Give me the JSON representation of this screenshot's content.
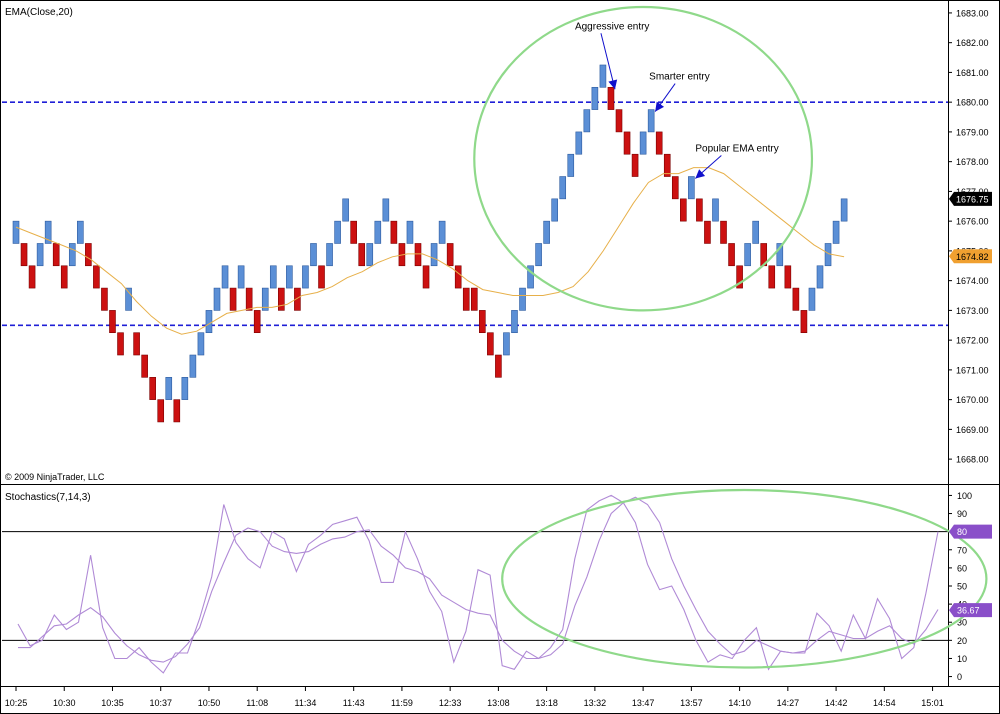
{
  "chart_data": [
    {
      "type": "renko",
      "title": "EMA(Close,20)",
      "copyright": "© 2009 NinjaTrader, LLC",
      "ylim": [
        1667.5,
        1683.3
      ],
      "y_ticks": [
        1668.0,
        1669.0,
        1670.0,
        1671.0,
        1672.0,
        1673.0,
        1674.0,
        1675.0,
        1676.0,
        1677.0,
        1678.0,
        1679.0,
        1680.0,
        1681.0,
        1682.0,
        1683.0
      ],
      "brick_size": 0.75,
      "colors": {
        "up": "#5b8fd6",
        "down": "#cc1111",
        "ema": "#e7b04a",
        "levels": "#1f1fd6",
        "ellipse": "#8fd98a",
        "arrow": "#1010cc"
      },
      "bricks": [
        {
          "o": 1675.25,
          "c": 1676.0
        },
        {
          "o": 1675.25,
          "c": 1674.5
        },
        {
          "o": 1674.5,
          "c": 1673.75
        },
        {
          "o": 1674.5,
          "c": 1675.25
        },
        {
          "o": 1675.25,
          "c": 1676.0
        },
        {
          "o": 1675.25,
          "c": 1674.5
        },
        {
          "o": 1674.5,
          "c": 1673.75
        },
        {
          "o": 1674.5,
          "c": 1675.25
        },
        {
          "o": 1675.25,
          "c": 1676.0
        },
        {
          "o": 1675.25,
          "c": 1674.5
        },
        {
          "o": 1674.5,
          "c": 1673.75
        },
        {
          "o": 1673.75,
          "c": 1673.0
        },
        {
          "o": 1673.0,
          "c": 1672.25
        },
        {
          "o": 1672.25,
          "c": 1671.5
        },
        {
          "o": 1673.0,
          "c": 1673.75
        },
        {
          "o": 1672.25,
          "c": 1671.5
        },
        {
          "o": 1671.5,
          "c": 1670.75
        },
        {
          "o": 1670.75,
          "c": 1670.0
        },
        {
          "o": 1670.0,
          "c": 1669.25
        },
        {
          "o": 1670.0,
          "c": 1670.75
        },
        {
          "o": 1670.0,
          "c": 1669.25
        },
        {
          "o": 1670.0,
          "c": 1670.75
        },
        {
          "o": 1670.75,
          "c": 1671.5
        },
        {
          "o": 1671.5,
          "c": 1672.25
        },
        {
          "o": 1672.25,
          "c": 1673.0
        },
        {
          "o": 1673.0,
          "c": 1673.75
        },
        {
          "o": 1673.75,
          "c": 1674.5
        },
        {
          "o": 1673.75,
          "c": 1673.0
        },
        {
          "o": 1673.75,
          "c": 1674.5
        },
        {
          "o": 1673.75,
          "c": 1673.0
        },
        {
          "o": 1673.0,
          "c": 1672.25
        },
        {
          "o": 1673.0,
          "c": 1673.75
        },
        {
          "o": 1673.75,
          "c": 1674.5
        },
        {
          "o": 1673.75,
          "c": 1673.0
        },
        {
          "o": 1673.75,
          "c": 1674.5
        },
        {
          "o": 1673.75,
          "c": 1673.0
        },
        {
          "o": 1673.75,
          "c": 1674.5
        },
        {
          "o": 1674.5,
          "c": 1675.25
        },
        {
          "o": 1674.5,
          "c": 1673.75
        },
        {
          "o": 1674.5,
          "c": 1675.25
        },
        {
          "o": 1675.25,
          "c": 1676.0
        },
        {
          "o": 1676.0,
          "c": 1676.75
        },
        {
          "o": 1676.0,
          "c": 1675.25
        },
        {
          "o": 1675.25,
          "c": 1674.5
        },
        {
          "o": 1674.5,
          "c": 1675.25
        },
        {
          "o": 1675.25,
          "c": 1676.0
        },
        {
          "o": 1676.0,
          "c": 1676.75
        },
        {
          "o": 1676.0,
          "c": 1675.25
        },
        {
          "o": 1675.25,
          "c": 1674.5
        },
        {
          "o": 1675.25,
          "c": 1676.0
        },
        {
          "o": 1675.25,
          "c": 1674.5
        },
        {
          "o": 1674.5,
          "c": 1673.75
        },
        {
          "o": 1674.5,
          "c": 1675.25
        },
        {
          "o": 1675.25,
          "c": 1676.0
        },
        {
          "o": 1675.25,
          "c": 1674.5
        },
        {
          "o": 1674.5,
          "c": 1673.75
        },
        {
          "o": 1673.75,
          "c": 1673.0
        },
        {
          "o": 1673.75,
          "c": 1673.0
        },
        {
          "o": 1673.0,
          "c": 1672.25
        },
        {
          "o": 1672.25,
          "c": 1671.5
        },
        {
          "o": 1671.5,
          "c": 1670.75
        },
        {
          "o": 1671.5,
          "c": 1672.25
        },
        {
          "o": 1672.25,
          "c": 1673.0
        },
        {
          "o": 1673.0,
          "c": 1673.75
        },
        {
          "o": 1673.75,
          "c": 1674.5
        },
        {
          "o": 1674.5,
          "c": 1675.25
        },
        {
          "o": 1675.25,
          "c": 1676.0
        },
        {
          "o": 1676.0,
          "c": 1676.75
        },
        {
          "o": 1676.75,
          "c": 1677.5
        },
        {
          "o": 1677.5,
          "c": 1678.25
        },
        {
          "o": 1678.25,
          "c": 1679.0
        },
        {
          "o": 1679.0,
          "c": 1679.75
        },
        {
          "o": 1679.75,
          "c": 1680.5
        },
        {
          "o": 1680.5,
          "c": 1681.25
        },
        {
          "o": 1680.5,
          "c": 1679.75
        },
        {
          "o": 1679.75,
          "c": 1679.0
        },
        {
          "o": 1679.0,
          "c": 1678.25
        },
        {
          "o": 1678.25,
          "c": 1677.5
        },
        {
          "o": 1678.25,
          "c": 1679.0
        },
        {
          "o": 1679.0,
          "c": 1679.75
        },
        {
          "o": 1679.0,
          "c": 1678.25
        },
        {
          "o": 1678.25,
          "c": 1677.5
        },
        {
          "o": 1677.5,
          "c": 1676.75
        },
        {
          "o": 1676.75,
          "c": 1676.0
        },
        {
          "o": 1676.75,
          "c": 1677.5
        },
        {
          "o": 1676.75,
          "c": 1676.0
        },
        {
          "o": 1676.0,
          "c": 1675.25
        },
        {
          "o": 1676.0,
          "c": 1676.75
        },
        {
          "o": 1676.0,
          "c": 1675.25
        },
        {
          "o": 1675.25,
          "c": 1674.5
        },
        {
          "o": 1674.5,
          "c": 1673.75
        },
        {
          "o": 1674.5,
          "c": 1675.25
        },
        {
          "o": 1675.25,
          "c": 1676.0
        },
        {
          "o": 1675.25,
          "c": 1674.5
        },
        {
          "o": 1674.5,
          "c": 1673.75
        },
        {
          "o": 1674.5,
          "c": 1675.25
        },
        {
          "o": 1674.5,
          "c": 1673.75
        },
        {
          "o": 1673.75,
          "c": 1673.0
        },
        {
          "o": 1673.0,
          "c": 1672.25
        },
        {
          "o": 1673.0,
          "c": 1673.75
        },
        {
          "o": 1673.75,
          "c": 1674.5
        },
        {
          "o": 1674.5,
          "c": 1675.25
        },
        {
          "o": 1675.25,
          "c": 1676.0
        },
        {
          "o": 1676.0,
          "c": 1676.75
        }
      ],
      "ema": [
        1675.8,
        1675.6,
        1675.4,
        1675.2,
        1675.0,
        1674.7,
        1674.3,
        1673.9,
        1673.3,
        1672.8,
        1672.4,
        1672.2,
        1672.3,
        1672.6,
        1672.9,
        1673.0,
        1673.1,
        1673.1,
        1673.2,
        1673.5,
        1673.6,
        1673.8,
        1674.1,
        1674.3,
        1674.6,
        1674.8,
        1674.9,
        1674.9,
        1674.7,
        1674.4,
        1674.0,
        1673.7,
        1673.6,
        1673.5,
        1673.5,
        1673.5,
        1673.6,
        1673.8,
        1674.3,
        1675.0,
        1675.8,
        1676.6,
        1677.3,
        1677.6,
        1677.6,
        1677.8,
        1677.8,
        1677.6,
        1677.2,
        1676.8,
        1676.4,
        1676.0,
        1675.6,
        1675.2,
        1674.9,
        1674.8
      ],
      "ema_last": 1674.82,
      "last_price": 1676.75,
      "horizontal_levels": [
        1680.0,
        1672.5
      ],
      "annotations": [
        {
          "text": "Aggressive entry",
          "target_brick": 74
        },
        {
          "text": "Smarter entry",
          "target_brick": 79
        },
        {
          "text": "Popular EMA entry",
          "target_brick": 84
        }
      ],
      "ellipse_region": {
        "brick_from": 57,
        "brick_to": 99,
        "y_from": 1673.0,
        "y_to": 1683.2
      }
    },
    {
      "type": "line",
      "title": "Stochastics(7,14,3)",
      "ylim": [
        -3,
        103
      ],
      "y_ticks": [
        0,
        10,
        20,
        30,
        40,
        50,
        60,
        70,
        80,
        90,
        100
      ],
      "overbought_level": 80,
      "oversold_level": 20,
      "last_value": 36.67,
      "colors": {
        "line": "#b08ad6",
        "marker": "#8a4fc9",
        "ellipse": "#8fd98a"
      },
      "series": [
        {
          "values": [
            29,
            17,
            20,
            34,
            26,
            30,
            67,
            27,
            10,
            10,
            16,
            8,
            2,
            13,
            13,
            32,
            55,
            95,
            74,
            65,
            60,
            80,
            76,
            58,
            73,
            78,
            84,
            86,
            88,
            75,
            52,
            52,
            80,
            65,
            47,
            36,
            8,
            25,
            59,
            56,
            6,
            4,
            14,
            10,
            16,
            26,
            65,
            92,
            97,
            100,
            96,
            85,
            62,
            48,
            50,
            37,
            20,
            8,
            12,
            10,
            20,
            27,
            4,
            14,
            13,
            13,
            35,
            28,
            14,
            34,
            21,
            43,
            32,
            10,
            16,
            46,
            80
          ]
        },
        {
          "values": [
            16,
            16,
            22,
            28,
            29,
            34,
            38,
            33,
            24,
            17,
            12,
            9,
            8,
            11,
            18,
            27,
            47,
            63,
            78,
            82,
            80,
            72,
            69,
            68,
            69,
            73,
            76,
            77,
            80,
            81,
            72,
            67,
            60,
            58,
            54,
            45,
            41,
            37,
            35,
            34,
            20,
            14,
            10,
            10,
            12,
            18,
            39,
            55,
            75,
            90,
            96,
            99,
            95,
            85,
            65,
            50,
            37,
            25,
            18,
            12,
            14,
            20,
            17,
            14,
            13,
            14,
            20,
            25,
            23,
            21,
            21,
            25,
            28,
            21,
            18,
            26,
            37
          ]
        }
      ],
      "ellipse_region": {
        "index_from": 40,
        "index_to": 80,
        "y_from": 5,
        "y_to": 103
      }
    }
  ],
  "x_axis_labels": [
    {
      "label": "10:25",
      "at_brick": 0
    },
    {
      "label": "10:30",
      "at_brick": 6
    },
    {
      "label": "10:35",
      "at_brick": 12
    },
    {
      "label": "10:37",
      "at_brick": 18
    },
    {
      "label": "10:50",
      "at_brick": 24
    },
    {
      "label": "11:08",
      "at_brick": 30
    },
    {
      "label": "11:34",
      "at_brick": 36
    },
    {
      "label": "11:43",
      "at_brick": 42
    },
    {
      "label": "11:59",
      "at_brick": 48
    },
    {
      "label": "12:33",
      "at_brick": 54
    },
    {
      "label": "13:08",
      "at_brick": 60
    },
    {
      "label": "13:18",
      "at_brick": 66
    },
    {
      "label": "13:32",
      "at_brick": 72
    },
    {
      "label": "13:47",
      "at_brick": 78
    },
    {
      "label": "13:57",
      "at_brick": 84
    },
    {
      "label": "14:10",
      "at_brick": 90
    },
    {
      "label": "14:27",
      "at_brick": 96
    },
    {
      "label": "14:42",
      "at_brick": 102
    },
    {
      "label": "14:54",
      "at_brick": 108
    },
    {
      "label": "15:01",
      "at_brick": 114
    }
  ]
}
